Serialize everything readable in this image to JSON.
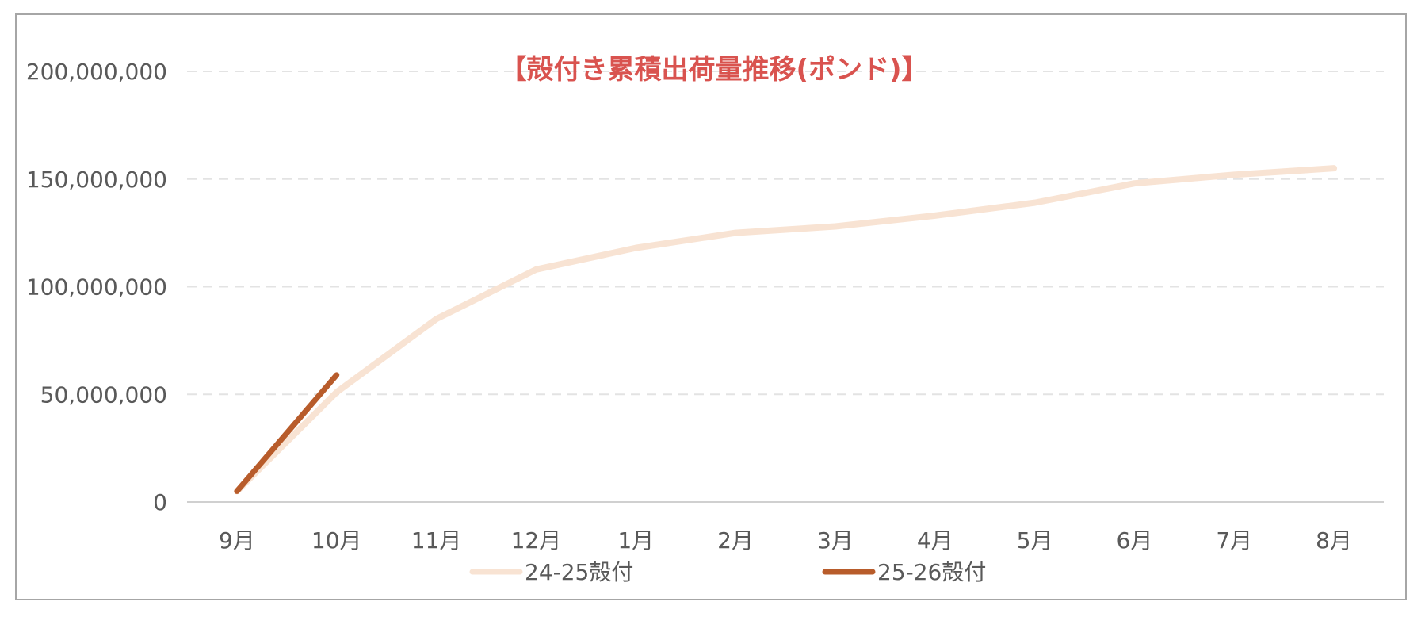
{
  "chart_data": {
    "type": "line",
    "title": "【殻付き累積出荷量推移(ポンド)】",
    "categories": [
      "9月",
      "10月",
      "11月",
      "12月",
      "1月",
      "2月",
      "3月",
      "4月",
      "5月",
      "6月",
      "7月",
      "8月"
    ],
    "y_ticks": [
      "0",
      "50,000,000",
      "100,000,000",
      "150,000,000",
      "200,000,000"
    ],
    "ylim": [
      0,
      200000000
    ],
    "grid": true,
    "legend_position": "bottom",
    "series": [
      {
        "name": "24-25殻付",
        "color": "#f8e3d3",
        "values": [
          5000000,
          51000000,
          85000000,
          108000000,
          118000000,
          125000000,
          128000000,
          133000000,
          139000000,
          148000000,
          152000000,
          155000000
        ]
      },
      {
        "name": "25-26殻付",
        "color": "#b85c2b",
        "values": [
          5000000,
          59000000,
          null,
          null,
          null,
          null,
          null,
          null,
          null,
          null,
          null,
          null
        ]
      }
    ]
  }
}
